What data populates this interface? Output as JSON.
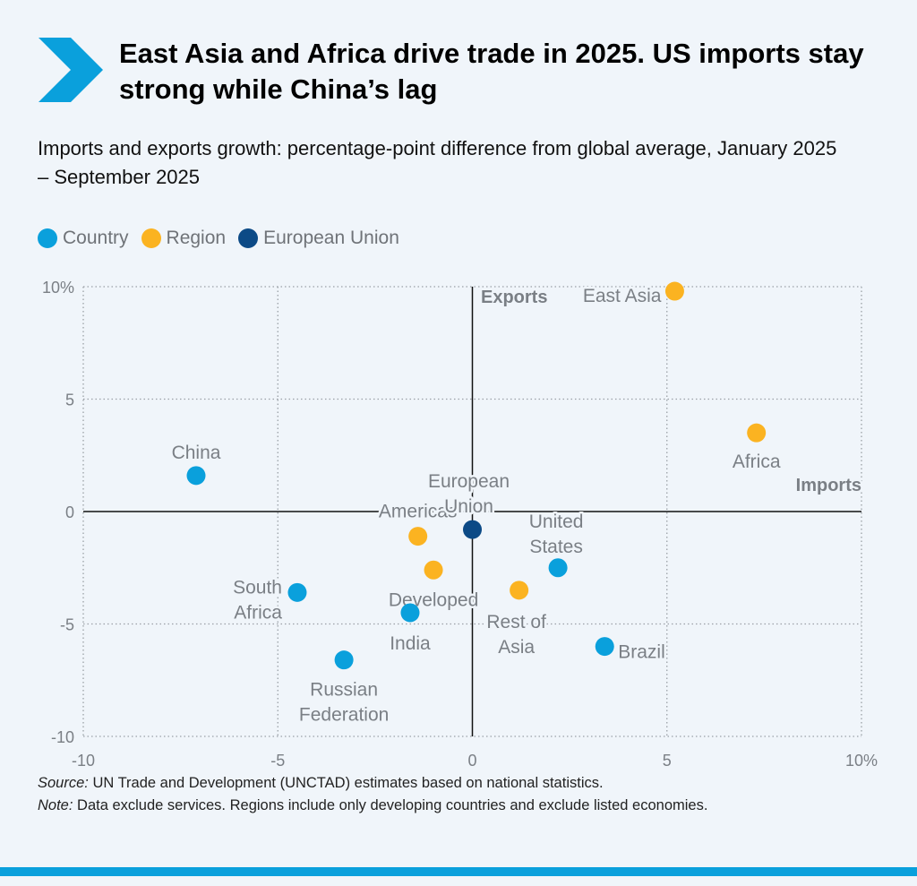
{
  "logo": {
    "icon": "chevron-right-icon",
    "color": "#0aa0dc"
  },
  "title": "East Asia and Africa drive trade in 2025. US imports stay strong while China’s lag",
  "subtitle": "Imports and exports growth: percentage-point difference from global average, January 2025 – September 2025",
  "legend": [
    {
      "label": "Country",
      "color": "#0aa0dc"
    },
    {
      "label": "Region",
      "color": "#fbb321"
    },
    {
      "label": "European Union",
      "color": "#0c4a86"
    }
  ],
  "chart_data": {
    "type": "scatter",
    "xlabel": "Imports",
    "ylabel": "Exports",
    "xlim": [
      -10,
      10
    ],
    "ylim": [
      -10,
      10
    ],
    "xticks": [
      "-10",
      "-5",
      "0",
      "5",
      "10%"
    ],
    "yticks": [
      "10%",
      "5",
      "0",
      "-5",
      "-10"
    ],
    "grid": true,
    "legend_placement": "top-left",
    "points": [
      {
        "label": [
          "China"
        ],
        "group": "Country",
        "x": -7.1,
        "y": 1.6
      },
      {
        "label": [
          "South",
          "Africa"
        ],
        "group": "Country",
        "x": -4.5,
        "y": -3.6
      },
      {
        "label": [
          "Russian",
          "Federation"
        ],
        "group": "Country",
        "x": -3.3,
        "y": -6.6
      },
      {
        "label": [
          "India"
        ],
        "group": "Country",
        "x": -1.6,
        "y": -4.5
      },
      {
        "label": [
          "United",
          "States"
        ],
        "group": "Country",
        "x": 2.2,
        "y": -2.5
      },
      {
        "label": [
          "Brazil"
        ],
        "group": "Country",
        "x": 3.4,
        "y": -6.0
      },
      {
        "label": [
          "East Asia"
        ],
        "group": "Region",
        "x": 5.2,
        "y": 9.8
      },
      {
        "label": [
          "Africa"
        ],
        "group": "Region",
        "x": 7.3,
        "y": 3.5
      },
      {
        "label": [
          "Americas"
        ],
        "group": "Region",
        "x": -1.4,
        "y": -1.1
      },
      {
        "label": [
          "Developed"
        ],
        "group": "Region",
        "x": -1.0,
        "y": -2.6
      },
      {
        "label": [
          "Rest of",
          "Asia"
        ],
        "group": "Region",
        "x": 1.2,
        "y": -3.5
      },
      {
        "label": [
          "European",
          "Union"
        ],
        "group": "European Union",
        "x": 0.0,
        "y": -0.8
      }
    ]
  },
  "source": {
    "source_label": "Source:",
    "source_text": " UN Trade and Development (UNCTAD) estimates based on national statistics.",
    "note_label": "Note:",
    "note_text": " Data exclude services. Regions include only developing countries and exclude listed economies."
  },
  "bottom_bar_color": "#0aa0dc"
}
